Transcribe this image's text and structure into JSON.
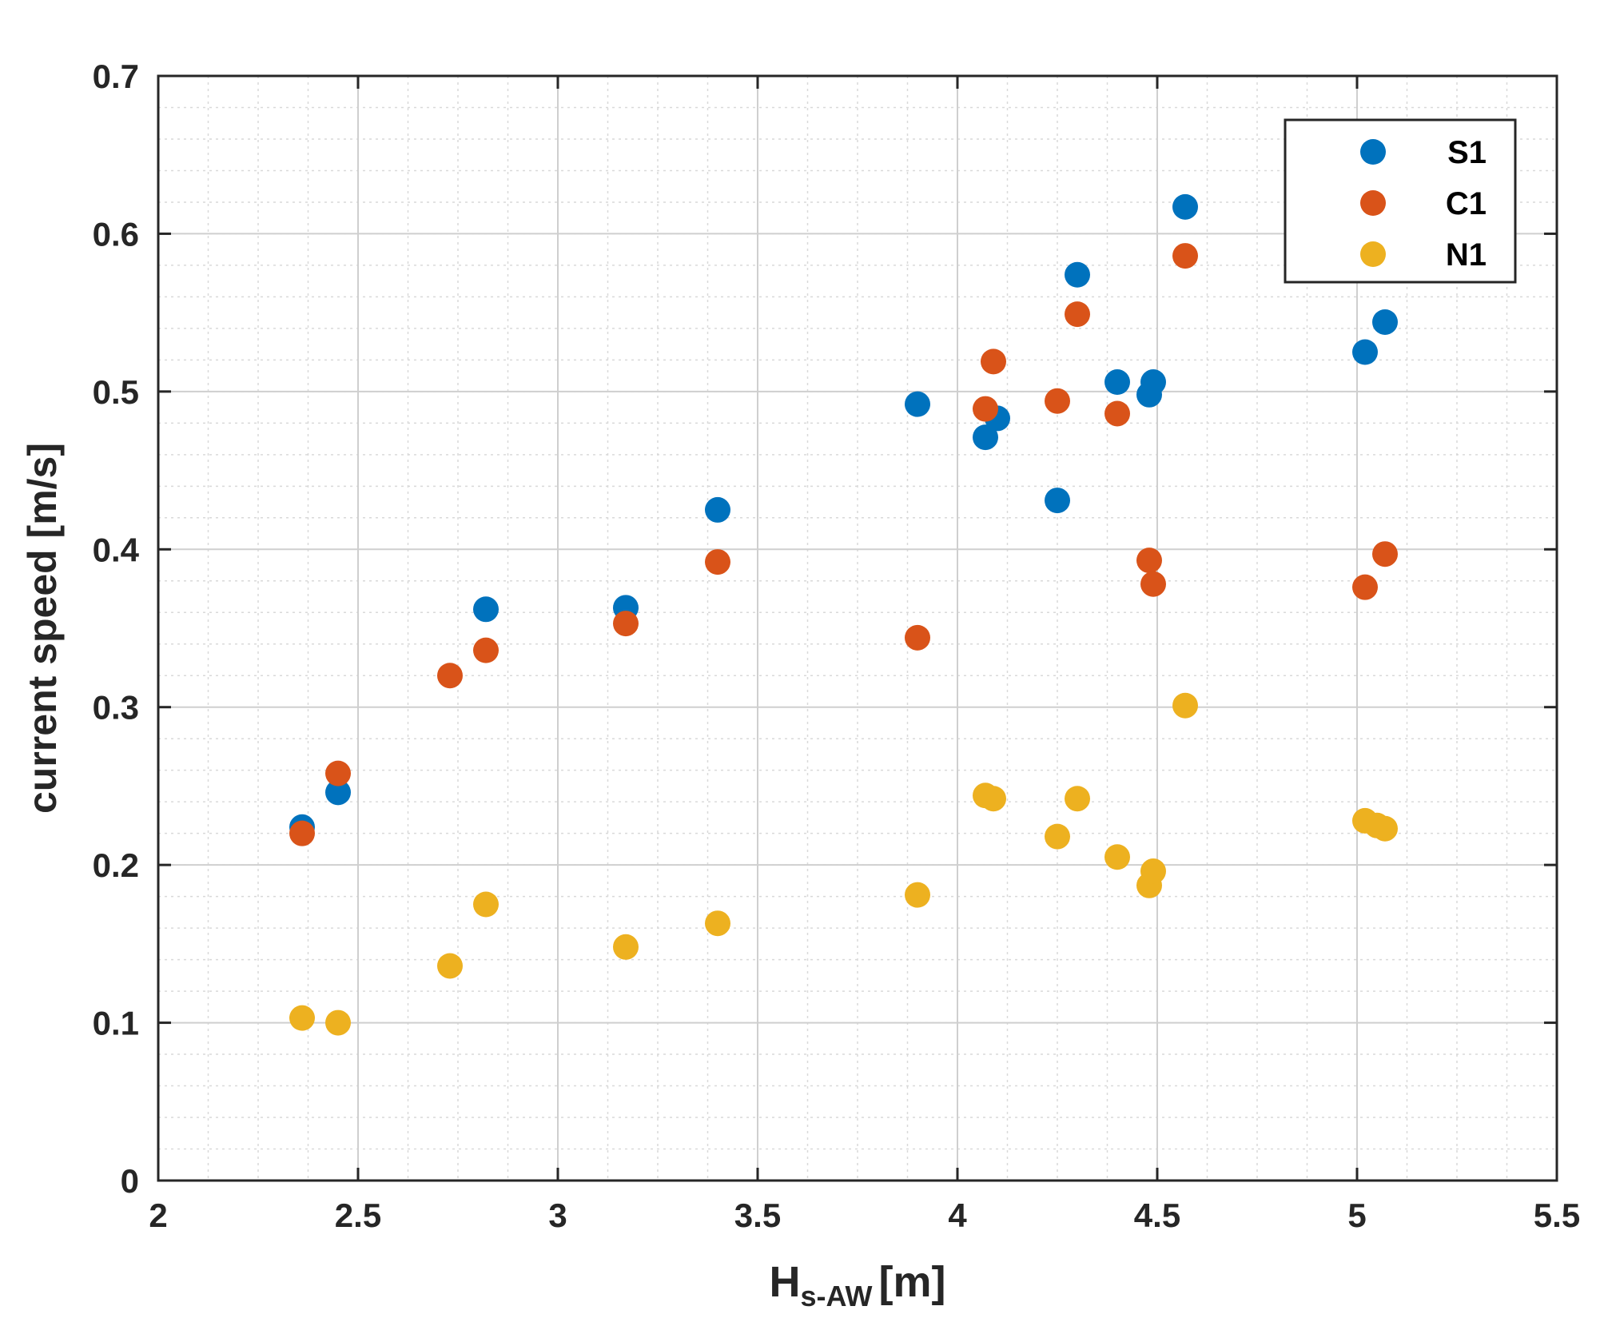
{
  "chart_data": {
    "type": "scatter",
    "title": "",
    "xlabel": {
      "main": "H",
      "sub": "s-AW",
      "unit": "[m]"
    },
    "ylabel": "current speed [m/s]",
    "xlim": [
      2,
      5.5
    ],
    "ylim": [
      0,
      0.7
    ],
    "xticks": [
      2,
      2.5,
      3,
      3.5,
      4,
      4.5,
      5,
      5.5
    ],
    "yticks": [
      0,
      0.1,
      0.2,
      0.3,
      0.4,
      0.5,
      0.6,
      0.7
    ],
    "xtick_labels": [
      "2",
      "2.5",
      "3",
      "3.5",
      "4",
      "4.5",
      "5",
      "5.5"
    ],
    "ytick_labels": [
      "0",
      "0.1",
      "0.2",
      "0.3",
      "0.4",
      "0.5",
      "0.6",
      "0.7"
    ],
    "grid": "major and minor",
    "legend_position": "top-right",
    "series": [
      {
        "name": "S1",
        "color": "#0072BD",
        "points": [
          [
            2.36,
            0.224
          ],
          [
            2.45,
            0.246
          ],
          [
            2.82,
            0.362
          ],
          [
            3.17,
            0.363
          ],
          [
            3.4,
            0.425
          ],
          [
            3.9,
            0.492
          ],
          [
            4.07,
            0.471
          ],
          [
            4.1,
            0.483
          ],
          [
            4.25,
            0.431
          ],
          [
            4.3,
            0.574
          ],
          [
            4.4,
            0.506
          ],
          [
            4.48,
            0.498
          ],
          [
            4.49,
            0.506
          ],
          [
            4.57,
            0.617
          ],
          [
            5.02,
            0.525
          ],
          [
            5.07,
            0.544
          ]
        ]
      },
      {
        "name": "C1",
        "color": "#D95319",
        "points": [
          [
            2.36,
            0.22
          ],
          [
            2.45,
            0.258
          ],
          [
            2.73,
            0.32
          ],
          [
            2.82,
            0.336
          ],
          [
            3.17,
            0.353
          ],
          [
            3.4,
            0.392
          ],
          [
            3.9,
            0.344
          ],
          [
            4.07,
            0.489
          ],
          [
            4.09,
            0.519
          ],
          [
            4.25,
            0.494
          ],
          [
            4.3,
            0.549
          ],
          [
            4.4,
            0.486
          ],
          [
            4.48,
            0.393
          ],
          [
            4.49,
            0.378
          ],
          [
            4.57,
            0.586
          ],
          [
            5.02,
            0.376
          ],
          [
            5.07,
            0.397
          ]
        ]
      },
      {
        "name": "N1",
        "color": "#EDB120",
        "points": [
          [
            2.36,
            0.103
          ],
          [
            2.45,
            0.1
          ],
          [
            2.73,
            0.136
          ],
          [
            2.82,
            0.175
          ],
          [
            3.17,
            0.148
          ],
          [
            3.4,
            0.163
          ],
          [
            3.9,
            0.181
          ],
          [
            4.07,
            0.244
          ],
          [
            4.09,
            0.242
          ],
          [
            4.25,
            0.218
          ],
          [
            4.3,
            0.242
          ],
          [
            4.4,
            0.205
          ],
          [
            4.48,
            0.187
          ],
          [
            4.49,
            0.196
          ],
          [
            4.57,
            0.301
          ],
          [
            5.02,
            0.228
          ],
          [
            5.05,
            0.225
          ],
          [
            5.07,
            0.223
          ]
        ]
      }
    ]
  }
}
